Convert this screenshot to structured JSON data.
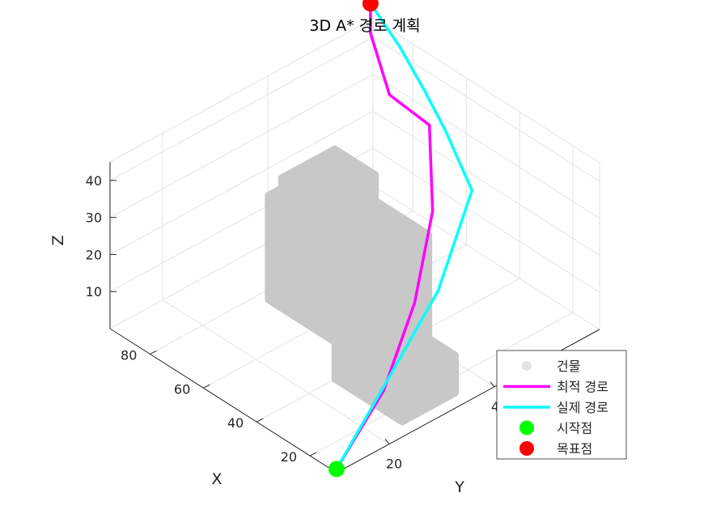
{
  "chart_data": {
    "type": "scatter",
    "projection": "3d",
    "title": "3D A* 경로 계획",
    "xlabel": "X",
    "ylabel": "Y",
    "zlabel": "Z",
    "xlim": [
      10,
      95
    ],
    "ylim": [
      10,
      60
    ],
    "zlim": [
      0,
      45
    ],
    "xticks": [
      20,
      40,
      60,
      80
    ],
    "yticks": [
      20,
      40
    ],
    "zticks": [
      10,
      20,
      30,
      40
    ],
    "grid": true,
    "legend_position": "bottom-right",
    "legend": [
      "건물",
      "최적 경로",
      "실제 경로",
      "시작점",
      "목표점"
    ],
    "colors": {
      "building": "#c8c8c8",
      "optimal": "#ff00ff",
      "actual": "#00ffff",
      "start": "#00ff00",
      "goal": "#ff0000"
    },
    "series": [
      {
        "name": "건물",
        "kind": "voxels",
        "boxes": [
          {
            "x": [
              15,
              40
            ],
            "y": [
              25,
              35
            ],
            "z": [
              0,
              10
            ]
          },
          {
            "x": [
              25,
              65
            ],
            "y": [
              25,
              35
            ],
            "z": [
              10,
              38
            ]
          },
          {
            "x": [
              45,
              60
            ],
            "y": [
              25,
              35
            ],
            "z": [
              38,
              45
            ]
          }
        ]
      },
      {
        "name": "최적 경로",
        "kind": "line",
        "points": [
          [
            10,
            10,
            1
          ],
          [
            22,
            25,
            5
          ],
          [
            34,
            37,
            14
          ],
          [
            47,
            47,
            25
          ],
          [
            62,
            54,
            36
          ],
          [
            75,
            53,
            39
          ],
          [
            92,
            58,
            44
          ],
          [
            92,
            58,
            52
          ]
        ]
      },
      {
        "name": "실제 경로",
        "kind": "line",
        "points": [
          [
            10,
            10,
            1
          ],
          [
            23,
            26,
            6
          ],
          [
            35,
            42,
            13
          ],
          [
            48,
            55,
            24
          ],
          [
            60,
            56,
            34
          ],
          [
            72,
            58,
            38
          ],
          [
            85,
            60,
            42
          ],
          [
            92,
            58,
            52
          ]
        ]
      },
      {
        "name": "시작점",
        "kind": "marker",
        "points": [
          [
            10,
            10,
            1
          ]
        ]
      },
      {
        "name": "목표점",
        "kind": "marker",
        "points": [
          [
            92,
            58,
            52
          ]
        ]
      }
    ]
  }
}
